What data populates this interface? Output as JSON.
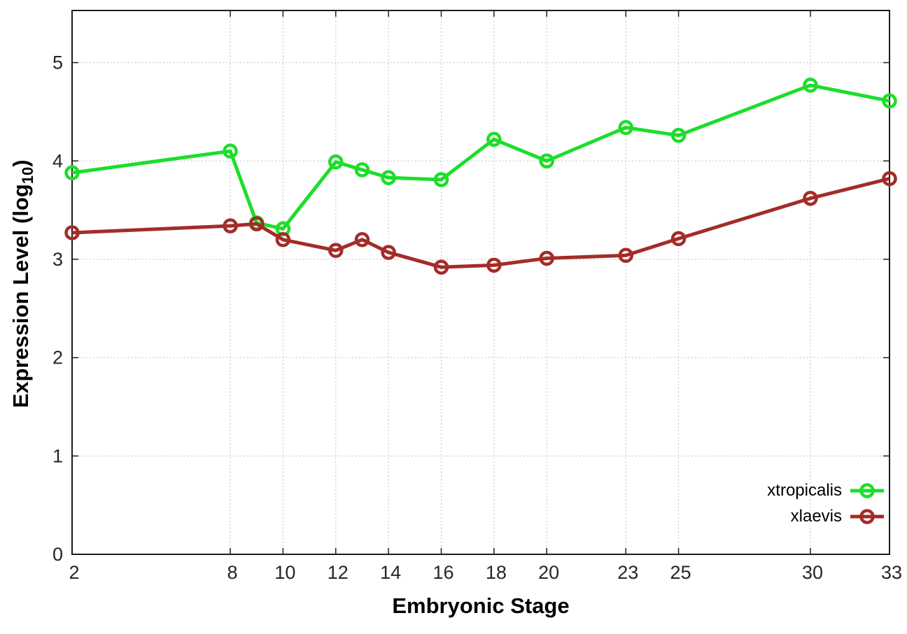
{
  "chart_data": {
    "type": "line",
    "xlabel": "Embryonic Stage",
    "ylabel": {
      "full": "Expression Level (log10)",
      "base": "Expression Level (log",
      "subscript": "10",
      "suffix": ")"
    },
    "x": [
      2,
      8,
      9,
      10,
      12,
      13,
      14,
      16,
      18,
      20,
      23,
      25,
      30,
      33
    ],
    "series": [
      {
        "name": "xtropicalis",
        "color": "#1CDE29",
        "values": [
          3.88,
          4.1,
          3.37,
          3.31,
          3.99,
          3.91,
          3.83,
          3.81,
          4.22,
          4.0,
          4.34,
          4.26,
          4.77,
          4.61
        ]
      },
      {
        "name": "xlaevis",
        "color": "#A32C28",
        "values": [
          3.27,
          3.34,
          3.36,
          3.2,
          3.09,
          3.2,
          3.07,
          2.92,
          2.94,
          3.01,
          3.04,
          3.21,
          3.62,
          3.82
        ]
      }
    ],
    "x_ticks": [
      2,
      8,
      10,
      12,
      14,
      16,
      18,
      20,
      23,
      25,
      30,
      33
    ],
    "y_ticks": [
      0,
      1,
      2,
      3,
      4,
      5
    ],
    "xlim": [
      2,
      33
    ],
    "ylim": [
      0,
      5.53
    ],
    "grid": true,
    "legend_position": "bottom-right",
    "marker": "open-circle"
  },
  "colors": {
    "background": "#ffffff",
    "plot_border": "#1c1c1c",
    "grid_line": "#b0b0b0",
    "tick_label": "#262626",
    "axis_title": "#000000"
  }
}
